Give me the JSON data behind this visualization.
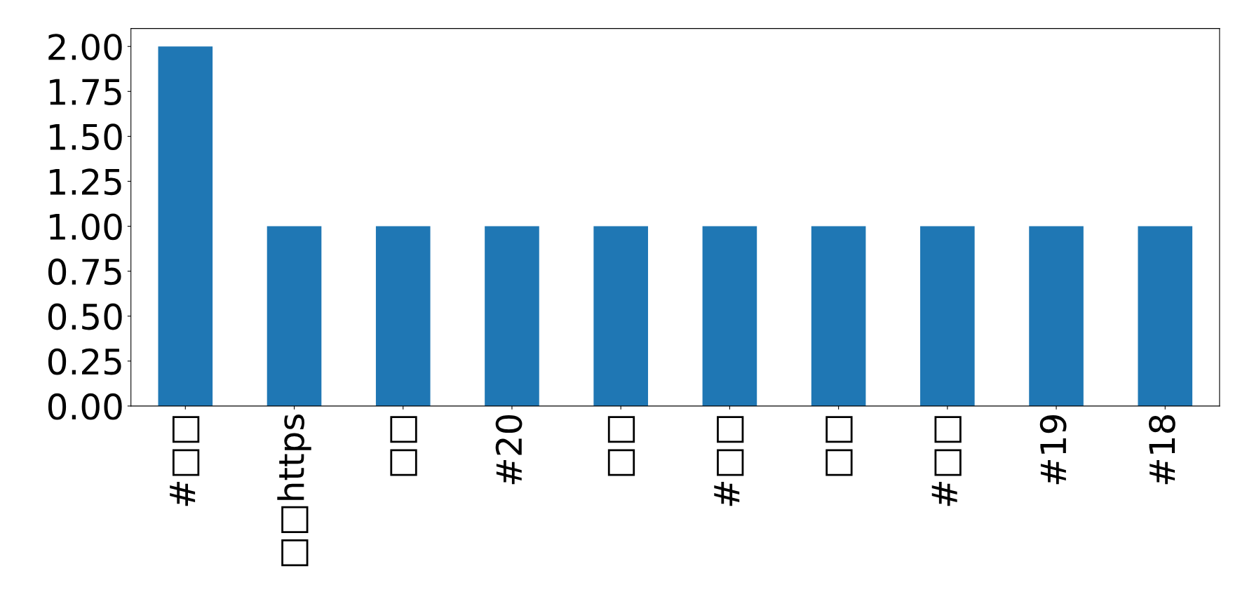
{
  "chart_data": {
    "type": "bar",
    "categories": [
      "#□□",
      "□□https",
      "□□",
      "#20",
      "□□",
      "#□□",
      "□□",
      "#□□",
      "#19",
      "#18"
    ],
    "values": [
      2,
      1,
      1,
      1,
      1,
      1,
      1,
      1,
      1,
      1
    ],
    "color": "#1f77b4",
    "ylim": [
      0,
      2.1
    ],
    "yticks": [
      {
        "value": 0,
        "label": "0.00"
      },
      {
        "value": 0.25,
        "label": "0.25"
      },
      {
        "value": 0.5,
        "label": "0.50"
      },
      {
        "value": 0.75,
        "label": "0.75"
      },
      {
        "value": 1,
        "label": "1.00"
      },
      {
        "value": 1.25,
        "label": "1.25"
      },
      {
        "value": 1.5,
        "label": "1.50"
      },
      {
        "value": 1.75,
        "label": "1.75"
      },
      {
        "value": 2,
        "label": "2.00"
      }
    ],
    "grid": false,
    "legend": false
  }
}
